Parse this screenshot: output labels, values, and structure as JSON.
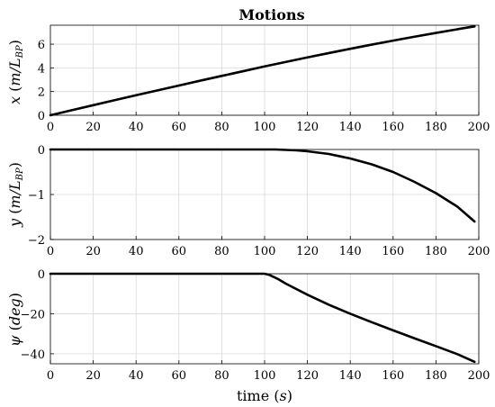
{
  "chart_data": [
    {
      "type": "line",
      "title": "Motions",
      "ylabel": "x (m/L_BP)",
      "xlim": [
        0,
        200
      ],
      "ylim": [
        0,
        7.6
      ],
      "x_ticks": [
        0,
        20,
        40,
        60,
        80,
        100,
        120,
        140,
        160,
        180,
        200
      ],
      "y_ticks": [
        0,
        2,
        4,
        6
      ],
      "grid": true,
      "series": [
        {
          "x": [
            0,
            10,
            20,
            30,
            40,
            50,
            60,
            70,
            80,
            90,
            100,
            110,
            120,
            130,
            140,
            150,
            160,
            170,
            180,
            190,
            198
          ],
          "y": [
            0.0,
            0.43,
            0.85,
            1.27,
            1.69,
            2.1,
            2.51,
            2.92,
            3.32,
            3.72,
            4.12,
            4.5,
            4.88,
            5.25,
            5.61,
            5.96,
            6.3,
            6.63,
            6.95,
            7.26,
            7.5
          ]
        }
      ]
    },
    {
      "type": "line",
      "ylabel": "y (m/L_BP)",
      "xlim": [
        0,
        200
      ],
      "ylim": [
        -2,
        0
      ],
      "x_ticks": [
        0,
        20,
        40,
        60,
        80,
        100,
        120,
        140,
        160,
        180,
        200
      ],
      "y_ticks": [
        0,
        -1,
        -2
      ],
      "grid": true,
      "series": [
        {
          "x": [
            0,
            20,
            40,
            60,
            80,
            100,
            105,
            110,
            115,
            120,
            130,
            140,
            150,
            160,
            170,
            180,
            190,
            198
          ],
          "y": [
            0,
            0,
            0,
            0,
            0,
            0,
            0.0,
            -0.01,
            -0.02,
            -0.04,
            -0.1,
            -0.2,
            -0.33,
            -0.5,
            -0.72,
            -0.97,
            -1.27,
            -1.6
          ]
        }
      ]
    },
    {
      "type": "line",
      "ylabel": "ψ (deg)",
      "xlabel": "time (s)",
      "xlim": [
        0,
        200
      ],
      "ylim": [
        -45,
        0
      ],
      "x_ticks": [
        0,
        20,
        40,
        60,
        80,
        100,
        120,
        140,
        160,
        180,
        200
      ],
      "y_ticks": [
        0,
        -20,
        -40
      ],
      "grid": true,
      "series": [
        {
          "x": [
            0,
            20,
            40,
            60,
            80,
            100,
            102,
            106,
            110,
            120,
            130,
            140,
            150,
            160,
            170,
            180,
            190,
            198
          ],
          "y": [
            0,
            0,
            0,
            0,
            0,
            0,
            -0.5,
            -2.5,
            -5,
            -10.5,
            -15.5,
            -20,
            -24.2,
            -28.3,
            -32.3,
            -36.2,
            -40.2,
            -44
          ]
        }
      ]
    }
  ]
}
